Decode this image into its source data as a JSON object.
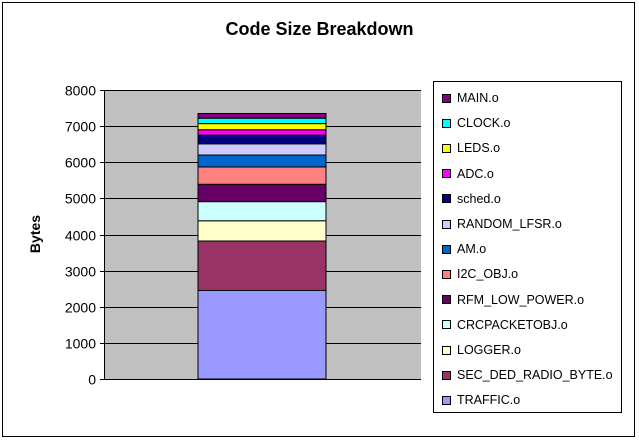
{
  "chart_data": {
    "type": "bar",
    "stacked": true,
    "title": "Code Size Breakdown",
    "xlabel": "",
    "ylabel": "Bytes",
    "ylim": [
      0,
      8000
    ],
    "yticks": [
      0,
      1000,
      2000,
      3000,
      4000,
      5000,
      6000,
      7000,
      8000
    ],
    "grid": true,
    "legend_position": "right",
    "categories": [
      ""
    ],
    "series": [
      {
        "name": "TRAFFIC.o",
        "values": [
          2450
        ],
        "color": "#9999ff"
      },
      {
        "name": "SEC_DED_RADIO_BYTE.o",
        "values": [
          1370
        ],
        "color": "#993366"
      },
      {
        "name": "LOGGER.o",
        "values": [
          560
        ],
        "color": "#ffffcc"
      },
      {
        "name": "CRCPACKETOBJ.o",
        "values": [
          530
        ],
        "color": "#ccffff"
      },
      {
        "name": "RFM_LOW_POWER.o",
        "values": [
          480
        ],
        "color": "#660066"
      },
      {
        "name": "I2C_OBJ.o",
        "values": [
          480
        ],
        "color": "#ff8080"
      },
      {
        "name": "AM.o",
        "values": [
          330
        ],
        "color": "#0066cc"
      },
      {
        "name": "RANDOM_LFSR.o",
        "values": [
          310
        ],
        "color": "#ccccff"
      },
      {
        "name": "sched.o",
        "values": [
          240
        ],
        "color": "#000080"
      },
      {
        "name": "ADC.o",
        "values": [
          150
        ],
        "color": "#ff00ff"
      },
      {
        "name": "LEDS.o",
        "values": [
          170
        ],
        "color": "#ffff00"
      },
      {
        "name": "CLOCK.o",
        "values": [
          150
        ],
        "color": "#00ffff"
      },
      {
        "name": "MAIN.o",
        "values": [
          130
        ],
        "color": "#800080"
      }
    ],
    "colors": {
      "plot_background": "#c0c0c0",
      "gridline": "#000000"
    }
  }
}
